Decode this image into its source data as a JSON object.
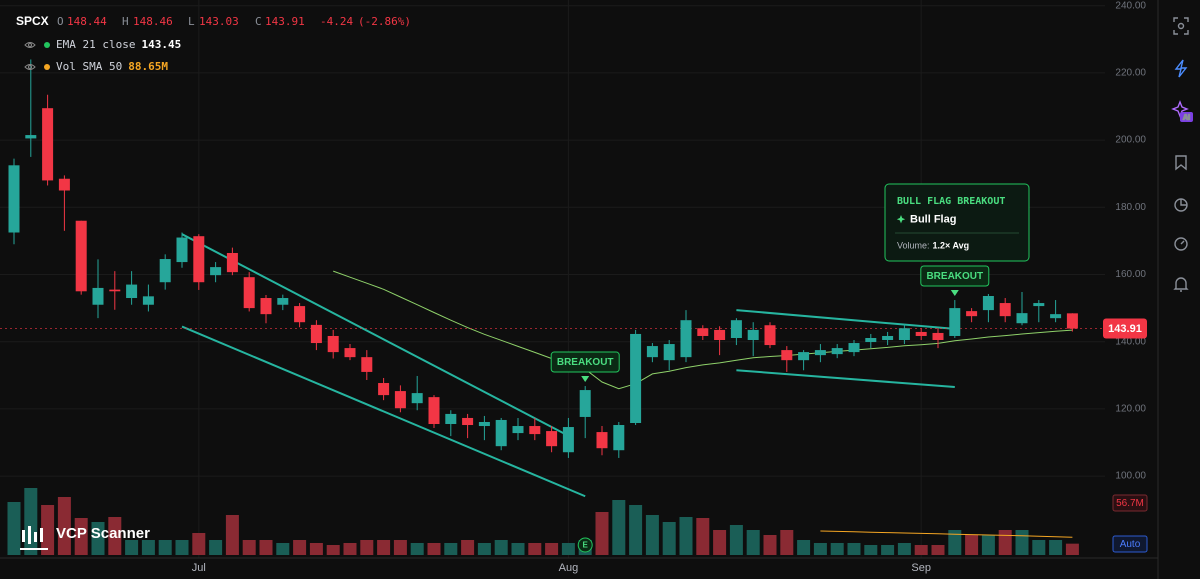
{
  "chart_data": {
    "type": "candlestick",
    "symbol": "SPCX",
    "header": {
      "labels": [
        "O",
        "H",
        "L",
        "C"
      ],
      "change": -4.24,
      "change_label": "(-2.86%)"
    },
    "categories": [
      null,
      null,
      null,
      null,
      null,
      null,
      null,
      null,
      null,
      null,
      null,
      "Jul",
      null,
      null,
      null,
      null,
      null,
      null,
      null,
      null,
      null,
      null,
      null,
      null,
      null,
      null,
      null,
      null,
      null,
      null,
      null,
      null,
      null,
      "Aug",
      null,
      null,
      null,
      null,
      null,
      null,
      null,
      null,
      null,
      null,
      null,
      null,
      null,
      null,
      null,
      null,
      null,
      null,
      null,
      null,
      "Sep",
      null,
      null,
      null,
      null,
      null,
      null,
      null,
      null,
      null
    ],
    "open": [
      172.5,
      200.5,
      209.5,
      188.5,
      176,
      151,
      155.5,
      153,
      151,
      157.7,
      163.7,
      171.4,
      159.8,
      166.4,
      159.2,
      153,
      151,
      150.6,
      145,
      141.7,
      138.1,
      135.4,
      127.7,
      125.3,
      121.7,
      123.5,
      115.5,
      117.3,
      114.9,
      108.9,
      112.8,
      114.9,
      113.4,
      107.1,
      117.6,
      113.1,
      107.7,
      115.8,
      135.4,
      134.5,
      135.4,
      144,
      143.5,
      141.1,
      140.5,
      144.9,
      137.5,
      134.5,
      136,
      136.3,
      136.9,
      139.9,
      140.5,
      140.5,
      142.9,
      142.6,
      141.7,
      149.1,
      149.4,
      151.5,
      145.5,
      150.6,
      147,
      148.44
    ],
    "high": [
      194.5,
      224,
      213.5,
      189.5,
      176,
      164.5,
      161,
      161,
      157,
      166,
      172.5,
      172,
      163.7,
      168,
      160.7,
      153.9,
      154,
      151.5,
      146.4,
      143.5,
      139.3,
      137.5,
      129.2,
      127,
      129.8,
      124.1,
      119.6,
      118.5,
      117.9,
      117.3,
      117.3,
      117.3,
      114.9,
      117.3,
      126.8,
      114.9,
      116.1,
      143.5,
      139.6,
      140.5,
      149.4,
      144.9,
      144.6,
      147,
      145.8,
      145.8,
      138.7,
      137.5,
      139.3,
      139.3,
      140.5,
      142.3,
      142.9,
      145.2,
      144,
      144,
      152.4,
      150,
      154.2,
      153,
      154.8,
      152.4,
      152.4,
      148.46
    ],
    "low": [
      169,
      195,
      186.5,
      173,
      154,
      147,
      149.5,
      151,
      149,
      155.5,
      162,
      155.4,
      157.7,
      159.8,
      149,
      145.5,
      149.4,
      144.3,
      137.5,
      135,
      134.5,
      128.6,
      122.6,
      119,
      119.6,
      114.3,
      111.9,
      111.3,
      110.7,
      107.7,
      110.7,
      110.7,
      107.1,
      105.4,
      111.3,
      106.2,
      105.4,
      115.2,
      133.9,
      131.5,
      133.9,
      140.5,
      136,
      139,
      135.7,
      138.1,
      131,
      131.5,
      133.9,
      135.1,
      135.7,
      138.1,
      139,
      139.3,
      140.5,
      138.1,
      141.1,
      145.8,
      145.8,
      145.8,
      144.9,
      145.8,
      145.8,
      143.03
    ],
    "close": [
      192.5,
      201.5,
      188,
      185,
      155,
      156,
      155,
      157,
      153.5,
      164.6,
      171,
      157.7,
      162.2,
      160.7,
      150,
      148.2,
      153,
      145.8,
      139.6,
      136.9,
      135.4,
      131,
      124.1,
      120.2,
      124.7,
      115.5,
      118.5,
      115.2,
      116.1,
      116.7,
      114.9,
      112.5,
      108.9,
      114.6,
      125.6,
      108.3,
      115.2,
      142.3,
      138.7,
      139.3,
      146.4,
      141.7,
      140.5,
      146.4,
      143.5,
      139,
      134.5,
      136.9,
      137.5,
      138.1,
      139.6,
      141.1,
      141.7,
      144,
      141.7,
      140.5,
      150,
      147.6,
      153.6,
      147.6,
      148.5,
      151.5,
      148.2,
      143.91
    ],
    "up_color": "#26a69a",
    "down_color": "#f23645",
    "ylim": [
      78,
      241.7
    ],
    "yticks": [
      {
        "value": 100,
        "label": "100.00"
      },
      {
        "value": 120,
        "label": "120.00"
      },
      {
        "value": 140,
        "label": "140.00"
      },
      {
        "value": 160,
        "label": "160.00"
      },
      {
        "value": 180,
        "label": "180.00"
      },
      {
        "value": 200,
        "label": "200.00"
      },
      {
        "value": 220,
        "label": "220.00"
      },
      {
        "value": 240,
        "label": "240.00"
      }
    ],
    "grid": true,
    "volume": {
      "values": [
        265,
        335,
        250,
        290,
        185,
        165,
        190,
        75,
        75,
        75,
        75,
        110,
        75,
        200,
        75,
        75,
        60,
        75,
        60,
        50,
        60,
        75,
        75,
        75,
        60,
        60,
        60,
        75,
        60,
        75,
        60,
        60,
        60,
        60,
        75,
        215,
        275,
        250,
        200,
        165,
        190,
        185,
        125,
        150,
        125,
        100,
        125,
        75,
        60,
        60,
        60,
        50,
        50,
        60,
        50,
        50,
        125,
        100,
        100,
        125,
        125,
        75,
        75,
        56.7
      ],
      "ylim": [
        0,
        2750
      ],
      "up_color": "#1a5e56",
      "down_color": "#8a2a33",
      "last_value_label": "56.7M"
    },
    "ema": {
      "name": "EMA 21 close",
      "color": "#8fd16a",
      "values": [
        null,
        null,
        null,
        null,
        null,
        null,
        null,
        null,
        null,
        null,
        null,
        null,
        null,
        null,
        null,
        null,
        null,
        null,
        null,
        161.0,
        159.2,
        157.4,
        155.6,
        153.3,
        151.0,
        148.7,
        146.4,
        144.2,
        142.2,
        140.4,
        138.6,
        136.8,
        135.0,
        133.2,
        131.8,
        128.0,
        126.0,
        127.5,
        130.4,
        131.2,
        132.3,
        133.1,
        133.7,
        134.5,
        135.2,
        135.6,
        135.9,
        136.3,
        136.7,
        137.1,
        137.5,
        137.9,
        138.3,
        138.8,
        139.1,
        139.5,
        140.3,
        140.8,
        141.4,
        141.8,
        142.3,
        142.7,
        143.1,
        143.45
      ]
    },
    "vol_sma": {
      "name": "Vol SMA 50",
      "color": "#f5a623",
      "value_label": "88.65M",
      "values": [
        null,
        null,
        null,
        null,
        null,
        null,
        null,
        null,
        null,
        null,
        null,
        null,
        null,
        null,
        null,
        null,
        null,
        null,
        null,
        null,
        null,
        null,
        null,
        null,
        null,
        null,
        null,
        null,
        null,
        null,
        null,
        null,
        null,
        null,
        null,
        null,
        null,
        null,
        null,
        null,
        null,
        null,
        null,
        null,
        null,
        null,
        null,
        null,
        120,
        118,
        116,
        114,
        112,
        110,
        108,
        106,
        104,
        102,
        100,
        98,
        96,
        94,
        91,
        88.65
      ]
    },
    "trendlines": [
      {
        "start": [
          10,
          172
        ],
        "end": [
          33,
          112
        ]
      },
      {
        "start": [
          10,
          144.5
        ],
        "end": [
          34,
          94
        ]
      },
      {
        "start": [
          43,
          149.4
        ],
        "end": [
          56,
          143.8
        ]
      },
      {
        "start": [
          43,
          131.5
        ],
        "end": [
          56,
          126.5
        ]
      }
    ],
    "trendline_color": "#26b5a0",
    "breakouts": [
      {
        "index": 34,
        "text": "BREAKOUT"
      },
      {
        "index": 56,
        "text": "BREAKOUT"
      }
    ],
    "earnings": {
      "index": 34,
      "text": "E"
    },
    "tooltip": {
      "title": "BULL FLAG BREAKOUT",
      "pattern": "Bull Flag",
      "volume_label": "Volume:",
      "volume_value": "1.2× Avg"
    },
    "watermark": "VCP Scanner",
    "scale_mode": "Auto"
  }
}
